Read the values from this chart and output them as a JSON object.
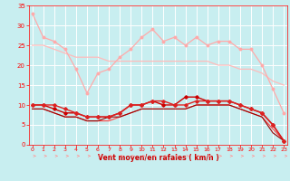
{
  "background_color": "#c8eef0",
  "grid_color": "#ffffff",
  "xlabel": "Vent moyen/en rafales ( km/h )",
  "xlim": [
    0,
    23
  ],
  "ylim": [
    0,
    35
  ],
  "xticks": [
    0,
    1,
    2,
    3,
    4,
    5,
    6,
    7,
    8,
    9,
    10,
    11,
    12,
    13,
    14,
    15,
    16,
    17,
    18,
    19,
    20,
    21,
    22,
    23
  ],
  "yticks": [
    0,
    5,
    10,
    15,
    20,
    25,
    30,
    35
  ],
  "x": [
    0,
    1,
    2,
    3,
    4,
    5,
    6,
    7,
    8,
    9,
    10,
    11,
    12,
    13,
    14,
    15,
    16,
    17,
    18,
    19,
    20,
    21,
    22,
    23
  ],
  "series1": [
    33,
    27,
    26,
    24,
    19,
    13,
    18,
    19,
    22,
    24,
    27,
    29,
    26,
    27,
    25,
    27,
    25,
    26,
    26,
    24,
    24,
    20,
    14,
    8
  ],
  "series2": [
    25,
    25,
    24,
    23,
    22,
    22,
    22,
    21,
    21,
    21,
    21,
    21,
    21,
    21,
    21,
    21,
    21,
    20,
    20,
    19,
    19,
    18,
    16,
    15
  ],
  "series3": [
    10,
    10,
    9,
    8,
    8,
    7,
    7,
    7,
    8,
    10,
    10,
    11,
    10,
    10,
    12,
    12,
    11,
    11,
    11,
    10,
    9,
    8,
    5,
    1
  ],
  "series4": [
    10,
    10,
    10,
    9,
    8,
    7,
    7,
    7,
    8,
    10,
    10,
    11,
    11,
    10,
    10,
    11,
    11,
    11,
    11,
    10,
    9,
    8,
    5,
    1
  ],
  "series5": [
    9,
    9,
    8,
    7,
    7,
    6,
    6,
    6,
    7,
    8,
    9,
    9,
    9,
    9,
    9,
    10,
    10,
    10,
    10,
    9,
    8,
    7,
    4,
    1
  ],
  "series6": [
    9,
    9,
    8,
    7,
    7,
    6,
    6,
    7,
    7,
    8,
    9,
    9,
    9,
    9,
    9,
    10,
    10,
    10,
    10,
    9,
    8,
    7,
    3,
    1
  ],
  "tick_color": "#ff0000",
  "label_color": "#cc0000",
  "arrow_color": "#ff9999",
  "color_s1": "#ffaaaa",
  "color_s2": "#ffbbbb",
  "color_s3": "#cc0000",
  "color_s4": "#dd2222",
  "color_s5": "#ff4444",
  "color_s6": "#990000"
}
